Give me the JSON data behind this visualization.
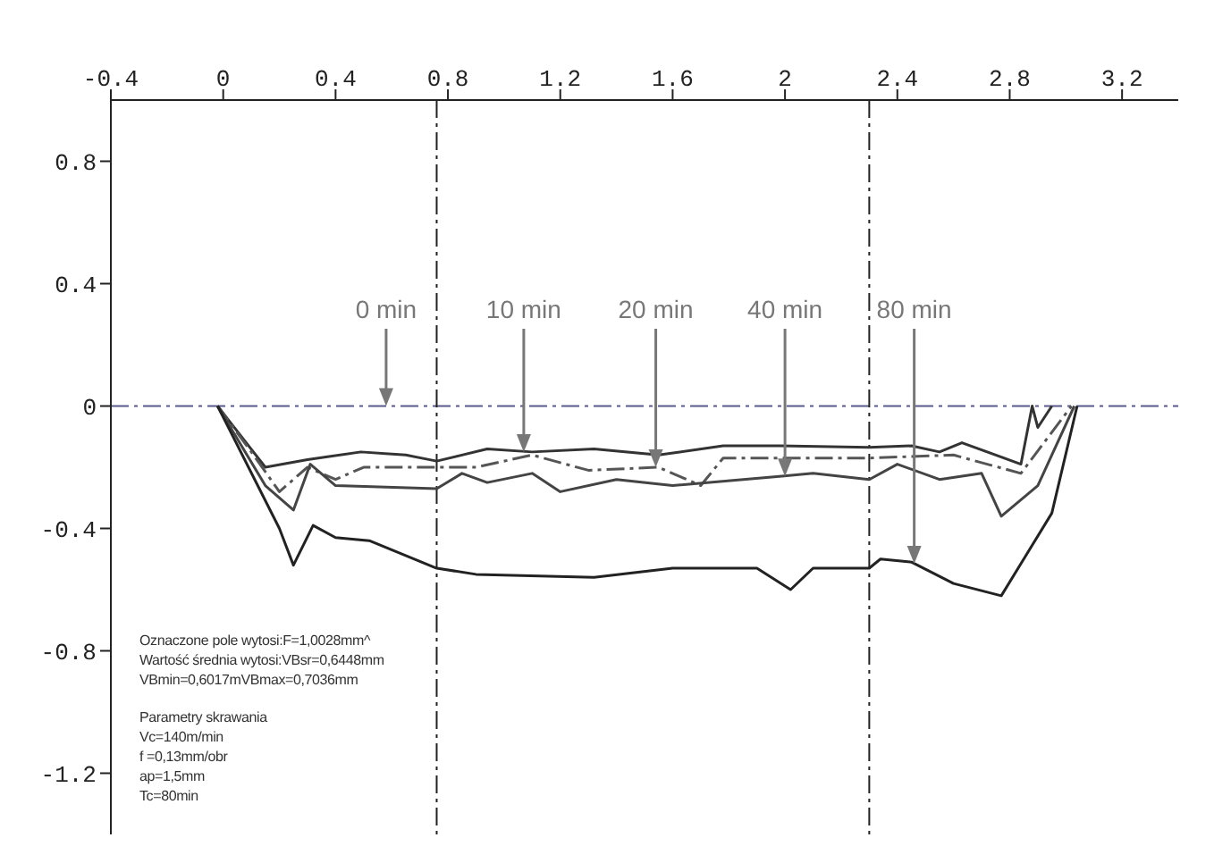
{
  "chart_data": {
    "type": "line",
    "xlim": [
      -0.4,
      3.4
    ],
    "xticks": [
      -0.4,
      0,
      0.4,
      0.8,
      1.2,
      1.6,
      2,
      2.4,
      2.8,
      3.2
    ],
    "ylim": [
      -1.4,
      1.0
    ],
    "yticks": [
      -1.2,
      -0.8,
      -0.4,
      0,
      0.4,
      0.8
    ],
    "grid": false,
    "legend": false,
    "marker": "none",
    "series": [
      {
        "color": "#333333",
        "line_style": "solid",
        "x": [
          -0.02,
          0.15,
          0.3,
          0.49,
          0.65,
          0.76,
          0.94,
          1.1,
          1.32,
          1.55,
          1.78,
          1.98,
          2.3,
          2.45,
          2.55,
          2.63,
          2.84,
          2.88,
          2.9,
          2.95
        ],
        "values": [
          0,
          -0.2,
          -0.175,
          -0.15,
          -0.16,
          -0.18,
          -0.14,
          -0.15,
          -0.14,
          -0.16,
          -0.13,
          -0.13,
          -0.135,
          -0.13,
          -0.15,
          -0.12,
          -0.19,
          0,
          -0.07,
          0
        ]
      },
      {
        "color": "#555555",
        "line_style": "dashed",
        "x": [
          -0.02,
          0.1,
          0.2,
          0.3,
          0.4,
          0.5,
          0.76,
          0.9,
          1.1,
          1.3,
          1.55,
          1.7,
          1.78,
          1.98,
          2.3,
          2.6,
          2.84,
          3.02
        ],
        "values": [
          0,
          -0.15,
          -0.28,
          -0.2,
          -0.24,
          -0.2,
          -0.2,
          -0.2,
          -0.16,
          -0.21,
          -0.2,
          -0.26,
          -0.17,
          -0.17,
          -0.17,
          -0.16,
          -0.22,
          0
        ]
      },
      {
        "color": "#444444",
        "line_style": "solid",
        "x": [
          -0.02,
          0.15,
          0.25,
          0.31,
          0.4,
          0.76,
          0.85,
          0.94,
          1.1,
          1.2,
          1.4,
          1.6,
          1.98,
          2.1,
          2.3,
          2.4,
          2.55,
          2.7,
          2.77,
          2.9,
          3.03
        ],
        "values": [
          0,
          -0.26,
          -0.34,
          -0.19,
          -0.26,
          -0.27,
          -0.22,
          -0.25,
          -0.22,
          -0.28,
          -0.24,
          -0.26,
          -0.23,
          -0.22,
          -0.24,
          -0.19,
          -0.24,
          -0.22,
          -0.36,
          -0.26,
          0
        ]
      },
      {
        "color": "#222222",
        "line_style": "solid",
        "x": [
          -0.02,
          0.2,
          0.25,
          0.32,
          0.4,
          0.52,
          0.76,
          0.9,
          1.32,
          1.6,
          1.9,
          2.02,
          2.1,
          2.3,
          2.34,
          2.45,
          2.6,
          2.77,
          2.85,
          2.95,
          3.04
        ],
        "values": [
          0,
          -0.4,
          -0.52,
          -0.39,
          -0.43,
          -0.44,
          -0.53,
          -0.55,
          -0.56,
          -0.53,
          -0.53,
          -0.6,
          -0.53,
          -0.53,
          -0.5,
          -0.51,
          -0.58,
          -0.62,
          -0.5,
          -0.35,
          0
        ]
      }
    ],
    "ref_lines": [
      {
        "axis": "y",
        "value": 0,
        "color": "#5a5a8a",
        "line_style": "dashed"
      },
      {
        "axis": "x",
        "value": 0.76,
        "color": "#222222",
        "line_style": "dashed"
      },
      {
        "axis": "x",
        "value": 2.3,
        "color": "#222222",
        "line_style": "dashed"
      }
    ],
    "annotations": [
      {
        "text": "0 min",
        "x": 0.58,
        "y": 0
      },
      {
        "text": "10 min",
        "x": 1.07,
        "y": -0.15
      },
      {
        "text": "20 min",
        "x": 1.54,
        "y": -0.2
      },
      {
        "text": "40 min",
        "x": 2.0,
        "y": -0.23
      },
      {
        "text": "80 min",
        "x": 2.46,
        "y": -0.515
      },
      "Oznaczone pole wytosi:F=1,0028mm^",
      "Wartość średnia wytosi:VBsr=0,6448mm",
      "VBmin=0,6017mVBmax=0,7036mm",
      "Parametry skrawania",
      "Vc=140m/min",
      "f =0,13mm/obr",
      "ap=1,5mm",
      "Tc=80min"
    ]
  }
}
